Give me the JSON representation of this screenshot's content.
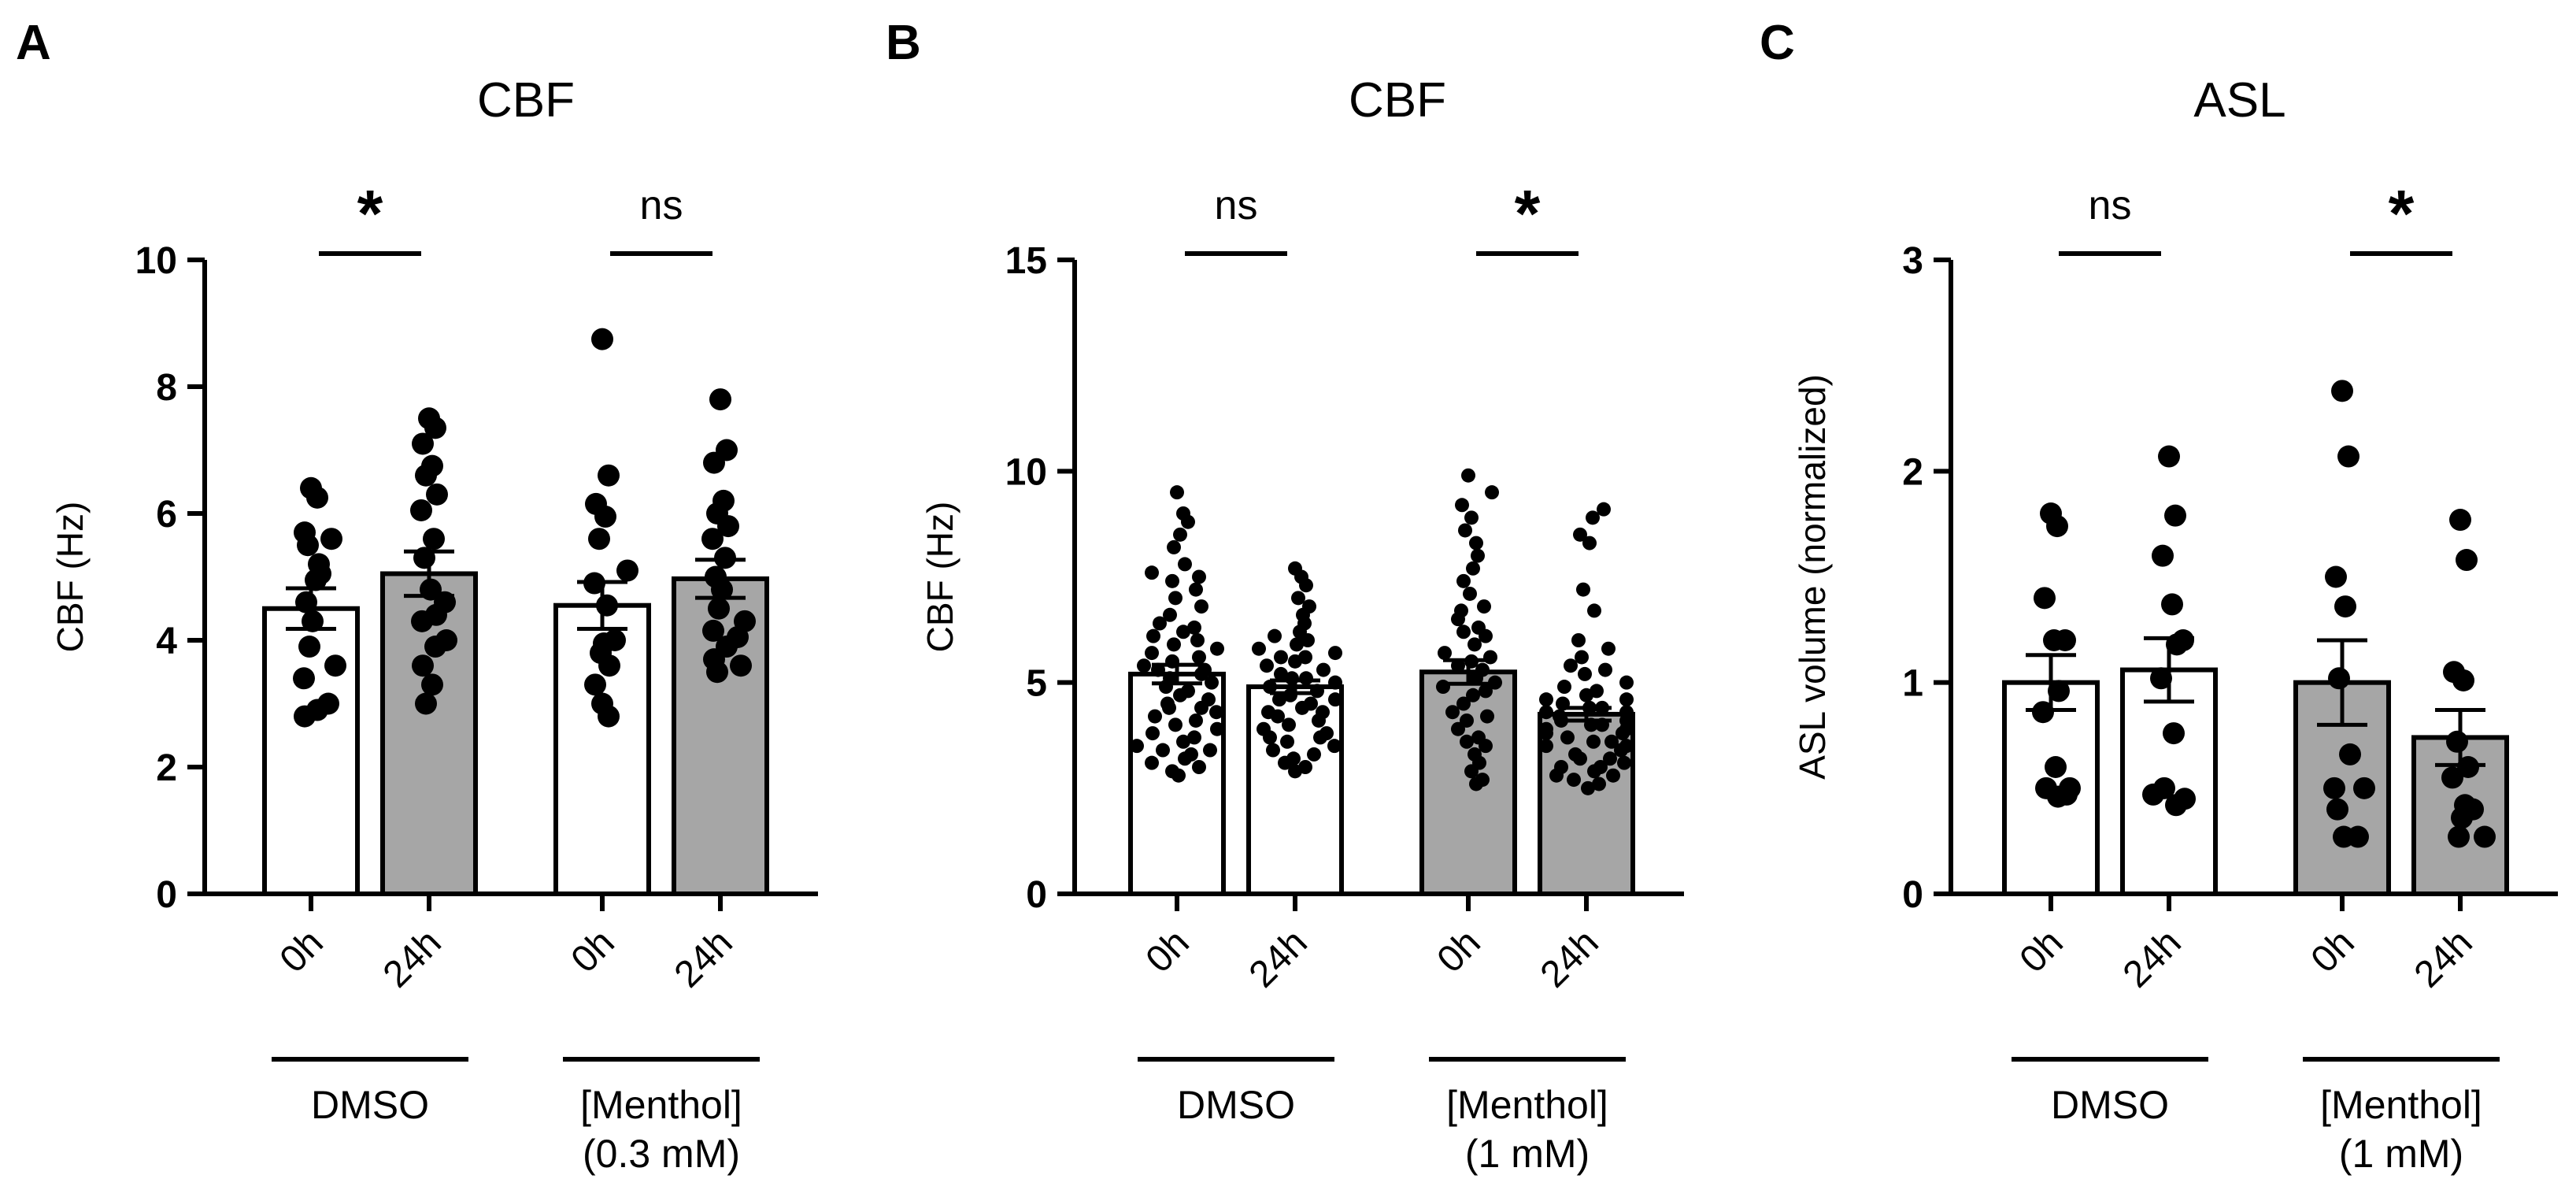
{
  "chart_data": [
    {
      "type": "bar",
      "panel_label": "A",
      "title": "CBF",
      "ylabel": "CBF (Hz)",
      "ylim": [
        0,
        10
      ],
      "yticks": [
        0,
        2,
        4,
        6,
        8,
        10
      ],
      "categories": [
        "0h",
        "24h",
        "0h",
        "24h"
      ],
      "bar_fill": [
        "white",
        "gray",
        "white",
        "gray"
      ],
      "means": [
        4.5,
        5.05,
        4.55,
        4.97
      ],
      "sem": [
        0.32,
        0.35,
        0.37,
        0.3
      ],
      "points": [
        [
          6.4,
          6.25,
          5.7,
          5.6,
          5.5,
          5.2,
          5.05,
          4.95,
          4.6,
          4.3,
          3.9,
          3.6,
          3.4,
          3.0,
          2.9,
          2.8
        ],
        [
          7.5,
          7.35,
          7.1,
          6.75,
          6.6,
          6.3,
          6.05,
          5.6,
          5.3,
          4.8,
          4.6,
          4.4,
          4.3,
          4.0,
          3.9,
          3.6,
          3.3,
          3.0
        ],
        [
          8.75,
          6.6,
          6.15,
          5.95,
          5.6,
          5.1,
          4.9,
          4.55,
          4.0,
          3.95,
          3.8,
          3.6,
          3.3,
          3.0,
          2.8
        ],
        [
          7.8,
          7.0,
          6.8,
          6.2,
          6.0,
          5.8,
          5.6,
          5.3,
          5.0,
          4.8,
          4.5,
          4.3,
          4.15,
          4.05,
          3.9,
          3.7,
          3.6,
          3.5
        ]
      ],
      "significance": [
        {
          "pair": [
            0,
            1
          ],
          "label": "*"
        },
        {
          "pair": [
            2,
            3
          ],
          "label": "ns"
        }
      ],
      "groups": [
        {
          "span": [
            0,
            1
          ],
          "lines": [
            "DMSO"
          ]
        },
        {
          "span": [
            2,
            3
          ],
          "lines": [
            "[Menthol]",
            "(0.3 mM)"
          ]
        }
      ]
    },
    {
      "type": "bar",
      "panel_label": "B",
      "title": "CBF",
      "ylabel": "CBF (Hz)",
      "ylim": [
        0,
        15
      ],
      "yticks": [
        0,
        5,
        10,
        15
      ],
      "categories": [
        "0h",
        "24h",
        "0h",
        "24h"
      ],
      "bar_fill": [
        "white",
        "white",
        "gray",
        "gray"
      ],
      "means": [
        5.2,
        4.9,
        5.25,
        4.25
      ],
      "sem": [
        0.22,
        0.15,
        0.28,
        0.15
      ],
      "points": [
        [
          9.5,
          9.0,
          8.8,
          8.5,
          8.2,
          7.8,
          7.6,
          7.5,
          7.4,
          7.2,
          7.0,
          6.8,
          6.6,
          6.4,
          6.2,
          6.1,
          6.0,
          5.9,
          5.8,
          5.7,
          5.6,
          5.5,
          5.4,
          5.3,
          5.2,
          5.1,
          5.0,
          4.9,
          4.8,
          4.7,
          4.6,
          4.5,
          4.4,
          4.3,
          4.2,
          4.1,
          4.0,
          3.9,
          3.8,
          3.7,
          3.6,
          3.5,
          3.4,
          3.3,
          3.2,
          3.1,
          3.0,
          2.9,
          2.8,
          3.4,
          4.4,
          5.3,
          6.3
        ],
        [
          7.7,
          7.5,
          7.3,
          7.0,
          6.8,
          6.6,
          6.4,
          6.2,
          6.0,
          5.9,
          5.8,
          5.7,
          5.6,
          5.5,
          5.4,
          5.3,
          5.2,
          5.1,
          5.0,
          4.9,
          4.8,
          4.7,
          4.6,
          4.5,
          4.4,
          4.3,
          4.2,
          4.1,
          4.0,
          3.9,
          3.8,
          3.7,
          3.6,
          3.5,
          3.4,
          3.3,
          3.2,
          3.1,
          3.0,
          2.9,
          4.6,
          5.1,
          5.6,
          6.1,
          4.3,
          3.7
        ],
        [
          9.9,
          9.5,
          9.2,
          8.9,
          8.6,
          8.3,
          8.0,
          7.7,
          7.4,
          7.1,
          6.8,
          6.5,
          6.3,
          6.1,
          5.9,
          5.7,
          5.5,
          5.3,
          5.1,
          4.9,
          4.7,
          4.5,
          4.3,
          4.1,
          3.9,
          3.7,
          3.5,
          3.3,
          3.1,
          2.9,
          2.7,
          2.6,
          5.0,
          5.6,
          6.2,
          4.2,
          3.6,
          5.4,
          6.7,
          4.8
        ],
        [
          9.1,
          8.9,
          8.5,
          8.3,
          7.2,
          6.7,
          6.0,
          5.8,
          5.6,
          5.4,
          5.2,
          5.0,
          4.8,
          4.7,
          4.6,
          4.5,
          4.4,
          4.3,
          4.2,
          4.1,
          4.0,
          3.9,
          3.8,
          3.7,
          3.6,
          3.5,
          3.4,
          3.3,
          3.2,
          3.1,
          3.0,
          2.9,
          2.8,
          2.7,
          2.6,
          2.5,
          4.4,
          4.1,
          3.8,
          3.5,
          3.2,
          4.6,
          4.3,
          3.9,
          3.6,
          3.0,
          2.8,
          4.9,
          5.3,
          4.0
        ]
      ],
      "significance": [
        {
          "pair": [
            0,
            1
          ],
          "label": "ns"
        },
        {
          "pair": [
            2,
            3
          ],
          "label": "*"
        }
      ],
      "groups": [
        {
          "span": [
            0,
            1
          ],
          "lines": [
            "DMSO"
          ]
        },
        {
          "span": [
            2,
            3
          ],
          "lines": [
            "[Menthol]",
            "(1 mM)"
          ]
        }
      ]
    },
    {
      "type": "bar",
      "panel_label": "C",
      "title": "ASL",
      "ylabel": "ASL volume (normalized)",
      "ylim": [
        0,
        3
      ],
      "yticks": [
        0,
        1,
        2,
        3
      ],
      "categories": [
        "0h",
        "24h",
        "0h",
        "24h"
      ],
      "bar_fill": [
        "white",
        "white",
        "gray",
        "gray"
      ],
      "means": [
        1.0,
        1.06,
        1.0,
        0.74
      ],
      "sem": [
        0.13,
        0.15,
        0.2,
        0.13
      ],
      "points": [
        [
          1.8,
          1.74,
          1.4,
          1.2,
          1.2,
          0.96,
          0.86,
          0.6,
          0.5,
          0.5,
          0.47,
          0.46
        ],
        [
          2.07,
          1.79,
          1.6,
          1.37,
          1.2,
          1.18,
          1.02,
          0.76,
          0.5,
          0.47,
          0.45,
          0.42
        ],
        [
          2.38,
          2.07,
          1.5,
          1.36,
          1.02,
          0.66,
          0.5,
          0.5,
          0.4,
          0.27,
          0.27
        ],
        [
          1.77,
          1.58,
          1.05,
          1.01,
          0.72,
          0.6,
          0.55,
          0.42,
          0.4,
          0.36,
          0.27,
          0.27
        ]
      ],
      "significance": [
        {
          "pair": [
            0,
            1
          ],
          "label": "ns"
        },
        {
          "pair": [
            2,
            3
          ],
          "label": "*"
        }
      ],
      "groups": [
        {
          "span": [
            0,
            1
          ],
          "lines": [
            "DMSO"
          ]
        },
        {
          "span": [
            2,
            3
          ],
          "lines": [
            "[Menthol]",
            "(1 mM)"
          ]
        }
      ]
    }
  ],
  "colors": {
    "bar_gray": "#a6a6a6",
    "bar_white": "#ffffff",
    "ink": "#000000"
  }
}
